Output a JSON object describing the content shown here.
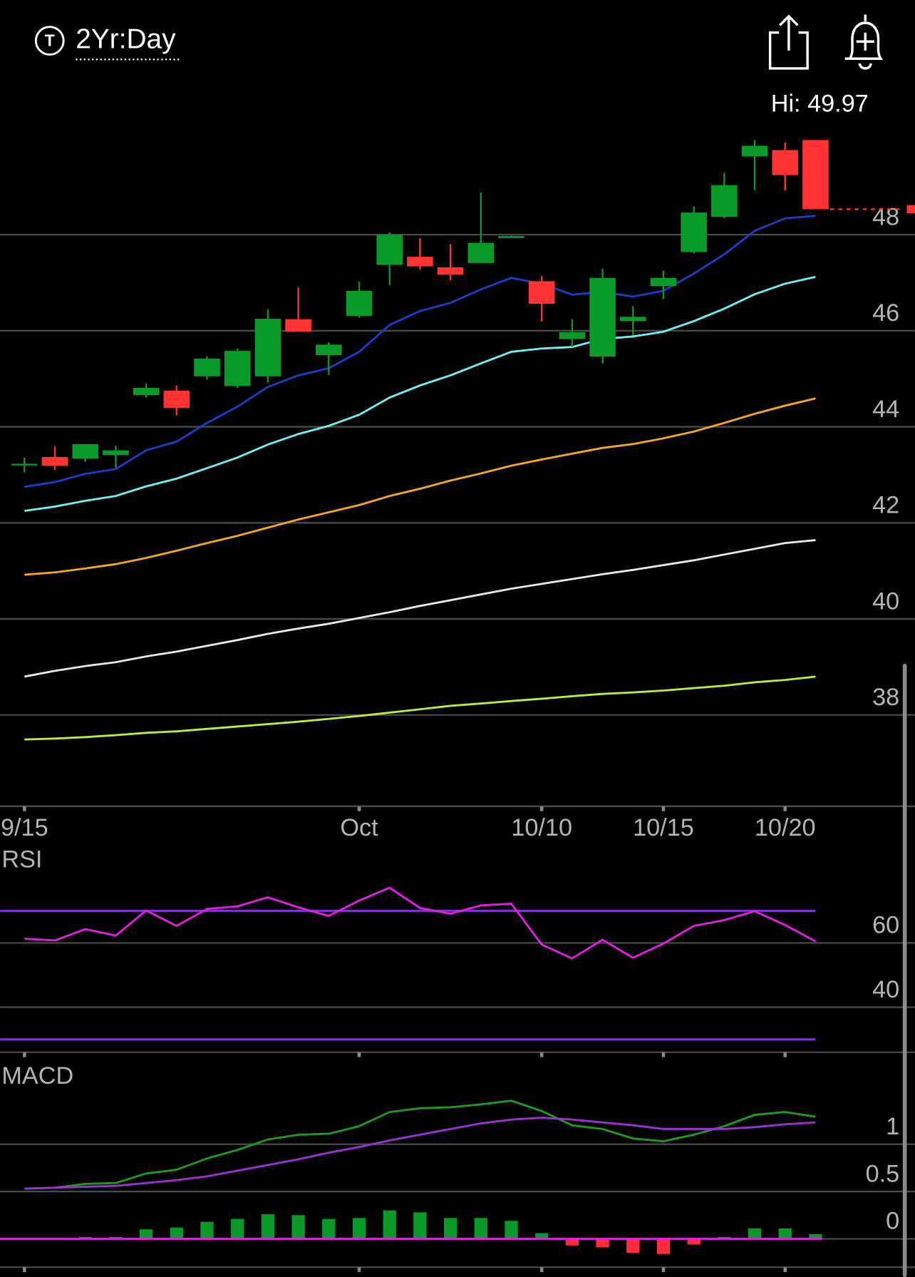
{
  "header": {
    "icon_letter": "T",
    "interval": "2Yr:Day"
  },
  "chart_data": [
    {
      "type": "candlestick",
      "hi_label": "Hi: 49.97",
      "categories": [
        "9/15",
        null,
        null,
        null,
        null,
        null,
        null,
        null,
        null,
        null,
        null,
        "Oct",
        null,
        null,
        null,
        null,
        null,
        "10/10",
        null,
        null,
        null,
        "10/15",
        null,
        null,
        null,
        "10/20",
        null
      ],
      "open": [
        43.22,
        43.37,
        43.34,
        43.41,
        44.66,
        44.75,
        45.05,
        44.85,
        45.05,
        46.24,
        45.49,
        46.31,
        47.37,
        47.54,
        47.32,
        47.41,
        47.93,
        47.03,
        45.83,
        45.46,
        46.2,
        46.93,
        47.64,
        48.37,
        49.63,
        49.76,
        49.97
      ],
      "high": [
        43.36,
        43.59,
        43.64,
        43.61,
        44.9,
        44.86,
        45.47,
        45.63,
        46.44,
        46.9,
        45.76,
        47.02,
        48.05,
        47.93,
        47.8,
        48.88,
        47.98,
        47.14,
        46.24,
        47.29,
        46.51,
        47.25,
        48.59,
        49.29,
        49.97,
        49.92,
        49.97
      ],
      "low": [
        43.05,
        43.1,
        43.27,
        43.14,
        44.61,
        44.24,
        44.98,
        44.81,
        44.92,
        45.98,
        45.08,
        46.27,
        46.95,
        47.27,
        47.05,
        47.41,
        47.93,
        46.19,
        45.66,
        45.32,
        45.9,
        46.66,
        47.61,
        48.34,
        48.93,
        48.92,
        48.53
      ],
      "close": [
        43.23,
        43.19,
        43.64,
        43.51,
        44.81,
        44.39,
        45.42,
        45.58,
        46.25,
        45.98,
        45.71,
        46.83,
        48.0,
        47.34,
        47.17,
        47.83,
        47.97,
        46.56,
        45.97,
        47.1,
        46.29,
        47.1,
        48.46,
        49.03,
        49.85,
        49.24,
        48.53
      ],
      "up_color": "#0a9a2a",
      "down_color": "#ff3333",
      "overlays": [
        {
          "color": "#1a3fc4",
          "values": [
            42.75,
            42.85,
            43.02,
            43.12,
            43.51,
            43.69,
            44.08,
            44.42,
            44.83,
            45.07,
            45.22,
            45.56,
            46.12,
            46.41,
            46.58,
            46.86,
            47.1,
            46.98,
            46.75,
            46.81,
            46.71,
            46.83,
            47.19,
            47.59,
            48.08,
            48.34,
            48.39
          ]
        },
        {
          "color": "#6ff0f0",
          "values": [
            42.25,
            42.34,
            42.46,
            42.56,
            42.76,
            42.92,
            43.14,
            43.36,
            43.63,
            43.85,
            44.02,
            44.25,
            44.61,
            44.86,
            45.07,
            45.32,
            45.56,
            45.63,
            45.66,
            45.83,
            45.88,
            45.98,
            46.2,
            46.46,
            46.76,
            46.98,
            47.12
          ]
        },
        {
          "color": "#f5a623",
          "values": [
            40.92,
            40.97,
            41.05,
            41.14,
            41.27,
            41.42,
            41.58,
            41.73,
            41.9,
            42.07,
            42.22,
            42.37,
            42.56,
            42.71,
            42.88,
            43.03,
            43.19,
            43.32,
            43.44,
            43.56,
            43.64,
            43.76,
            43.9,
            44.08,
            44.27,
            44.44,
            44.59
          ]
        },
        {
          "color": "#e8e8e8",
          "values": [
            38.8,
            38.92,
            39.02,
            39.1,
            39.22,
            39.32,
            39.44,
            39.56,
            39.69,
            39.8,
            39.9,
            40.02,
            40.14,
            40.27,
            40.39,
            40.51,
            40.63,
            40.73,
            40.83,
            40.93,
            41.02,
            41.12,
            41.22,
            41.34,
            41.46,
            41.58,
            41.64
          ]
        },
        {
          "color": "#b7f03a",
          "values": [
            37.49,
            37.51,
            37.54,
            37.58,
            37.63,
            37.66,
            37.71,
            37.76,
            37.81,
            37.86,
            37.92,
            37.98,
            38.05,
            38.12,
            38.19,
            38.24,
            38.29,
            38.34,
            38.39,
            38.44,
            38.47,
            38.51,
            38.56,
            38.61,
            38.68,
            38.73,
            38.8
          ]
        }
      ],
      "ylim": [
        36.1,
        51.02
      ],
      "yticks": [
        38,
        40,
        42,
        44,
        46,
        48
      ],
      "grid": true
    },
    {
      "type": "line",
      "title": "RSI",
      "series": [
        {
          "color": "#e020e0",
          "values": [
            61.3,
            60.8,
            64.3,
            62.3,
            70.1,
            65.3,
            70.6,
            71.4,
            74.2,
            71.1,
            68.4,
            73.2,
            77.2,
            70.9,
            69.1,
            71.7,
            72.2,
            59.5,
            55.2,
            61.0,
            55.4,
            59.8,
            65.3,
            67.1,
            69.9,
            65.6,
            60.5
          ]
        }
      ],
      "levels": [
        70,
        30
      ],
      "level_color": "#8a2be2",
      "ylim": [
        26,
        81
      ],
      "yticks": [
        40,
        60
      ],
      "grid": true
    },
    {
      "type": "macd",
      "title": "MACD",
      "series": [
        {
          "color": "#1e9a1e",
          "values": [
            0.53,
            0.54,
            0.58,
            0.59,
            0.69,
            0.73,
            0.85,
            0.94,
            1.05,
            1.1,
            1.11,
            1.19,
            1.34,
            1.38,
            1.39,
            1.42,
            1.46,
            1.35,
            1.2,
            1.16,
            1.06,
            1.03,
            1.1,
            1.19,
            1.31,
            1.34,
            1.29
          ]
        },
        {
          "color": "#9a30d0",
          "values": [
            0.53,
            0.54,
            0.55,
            0.56,
            0.59,
            0.62,
            0.66,
            0.72,
            0.78,
            0.84,
            0.91,
            0.97,
            1.04,
            1.1,
            1.16,
            1.22,
            1.26,
            1.28,
            1.26,
            1.23,
            1.2,
            1.16,
            1.16,
            1.16,
            1.18,
            1.21,
            1.23
          ]
        }
      ],
      "histogram": {
        "values": [
          0,
          0,
          0.02,
          0.02,
          0.1,
          0.12,
          0.18,
          0.21,
          0.26,
          0.25,
          0.21,
          0.22,
          0.3,
          0.28,
          0.22,
          0.22,
          0.19,
          0.06,
          -0.07,
          -0.09,
          -0.15,
          -0.16,
          -0.06,
          0.02,
          0.11,
          0.11,
          0.05
        ],
        "up_color": "#0a9a2a",
        "down_color": "#ff2d3a",
        "base_color": "#e020e0"
      },
      "ylim": [
        -0.3,
        1.55
      ],
      "yticks": [
        0,
        0.5,
        1
      ],
      "grid": true
    }
  ]
}
